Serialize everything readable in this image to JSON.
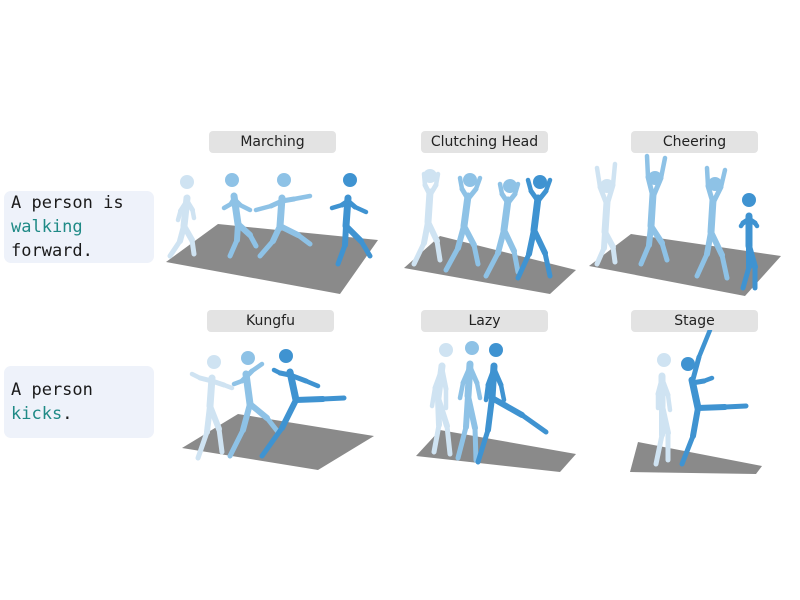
{
  "prompts": [
    {
      "prefix": "A person is",
      "keyword": "walking",
      "suffix": "forward.",
      "keyword_color": "#1f8a86"
    },
    {
      "prefix": "A person",
      "keyword": "kicks",
      "suffix": ".",
      "keyword_color": "#1f8a86"
    }
  ],
  "styles": {
    "row1": [
      "Marching",
      "Clutching Head",
      "Cheering"
    ],
    "row2": [
      "Kungfu",
      "Lazy",
      "Stage"
    ]
  },
  "colors": {
    "floor": "#8a8a8a",
    "figure_light": "#cfe3f2",
    "figure_mid": "#8ec2e6",
    "figure_dark": "#3f93d1",
    "prompt_background": "#eef2fa",
    "label_background": "#e3e3e3"
  }
}
